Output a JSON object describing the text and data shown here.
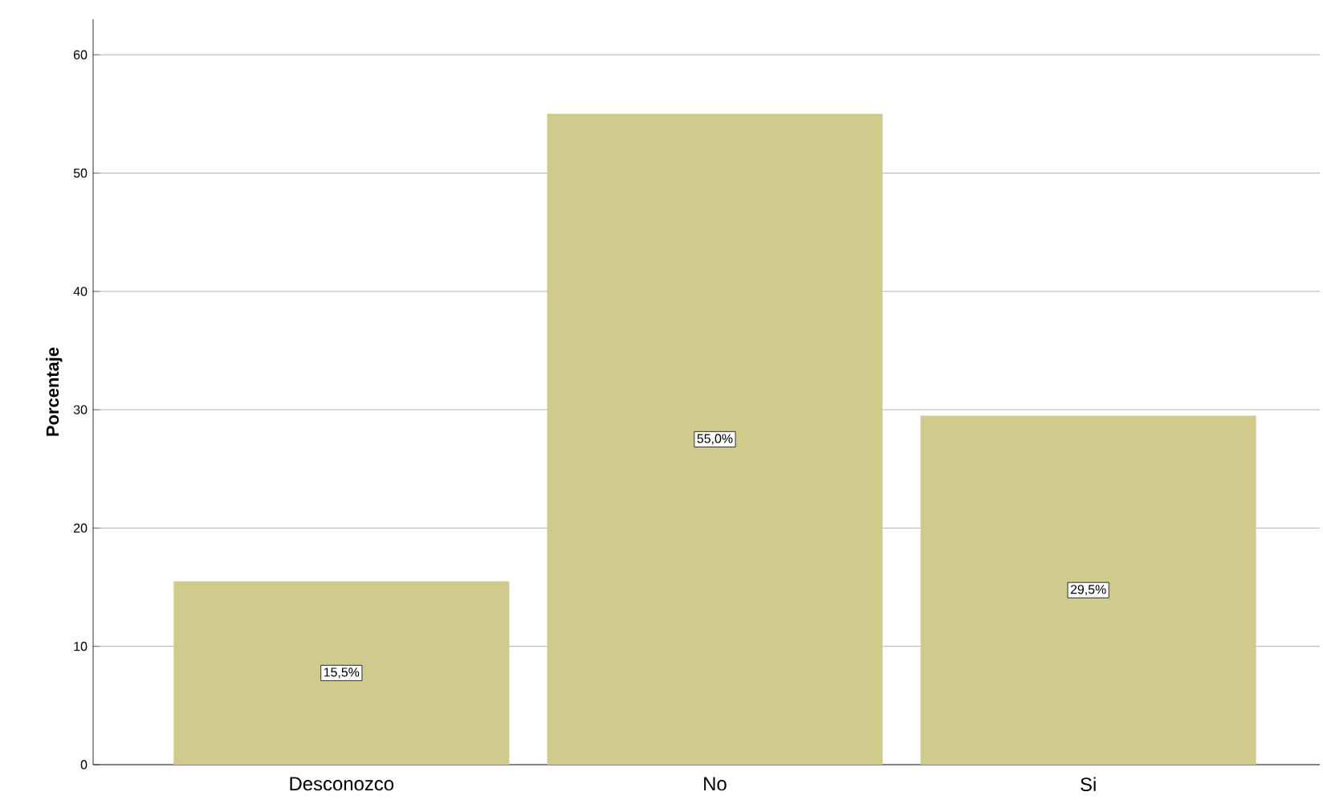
{
  "chart_data": {
    "type": "bar",
    "ylabel": "Porcentaje",
    "categories": [
      "Desconozco",
      "No",
      "Si"
    ],
    "values": [
      15.5,
      55.0,
      29.5
    ],
    "color": "#d0ca8d",
    "value_labels": [
      "15,5%",
      "55,0%",
      "29,5%"
    ],
    "ylim": [
      0,
      63
    ],
    "yticks": [
      0,
      10,
      20,
      30,
      40,
      50,
      60
    ],
    "grid": "y"
  }
}
